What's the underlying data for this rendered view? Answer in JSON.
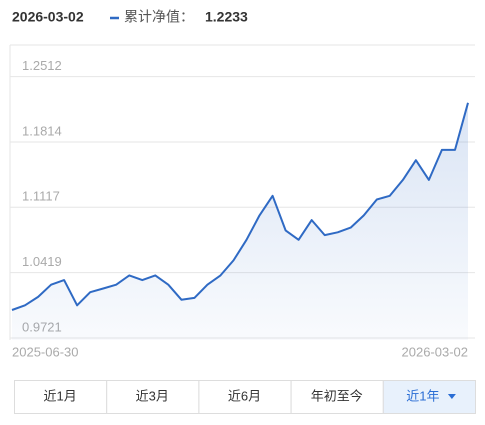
{
  "chart_data": {
    "type": "line",
    "x": [
      "2025-06-30",
      "2025-07-07",
      "2025-07-14",
      "2025-07-21",
      "2025-07-28",
      "2025-08-04",
      "2025-08-11",
      "2025-08-18",
      "2025-08-25",
      "2025-09-01",
      "2025-09-08",
      "2025-09-15",
      "2025-09-22",
      "2025-09-29",
      "2025-10-06",
      "2025-10-13",
      "2025-10-20",
      "2025-10-27",
      "2025-11-03",
      "2025-11-10",
      "2025-11-17",
      "2025-11-24",
      "2025-12-01",
      "2025-12-08",
      "2025-12-15",
      "2025-12-22",
      "2025-12-29",
      "2026-01-05",
      "2026-01-12",
      "2026-01-19",
      "2026-01-26",
      "2026-02-02",
      "2026-02-09",
      "2026-02-16",
      "2026-02-23",
      "2026-03-02"
    ],
    "series": [
      {
        "name": "累计净值：",
        "color": "#2f6ac4",
        "values": [
          1.002,
          1.007,
          1.016,
          1.029,
          1.034,
          1.007,
          1.021,
          1.025,
          1.029,
          1.039,
          1.034,
          1.039,
          1.029,
          1.013,
          1.015,
          1.029,
          1.039,
          1.055,
          1.077,
          1.103,
          1.124,
          1.087,
          1.077,
          1.098,
          1.082,
          1.085,
          1.09,
          1.103,
          1.12,
          1.124,
          1.141,
          1.162,
          1.141,
          1.173,
          1.173,
          1.2233
        ]
      }
    ],
    "ylim": [
      0.97,
      1.285
    ],
    "yticks": [
      0.9721,
      1.0419,
      1.1117,
      1.1814,
      1.2512
    ],
    "xlim": [
      "2025-06-30",
      "2026-03-02"
    ],
    "xticks": [
      "2025-06-30",
      "2026-03-02"
    ],
    "grid": true,
    "buttons": [
      "近1月",
      "近3月",
      "近6月",
      "年初至今",
      "近1年"
    ],
    "active_button": 4
  }
}
